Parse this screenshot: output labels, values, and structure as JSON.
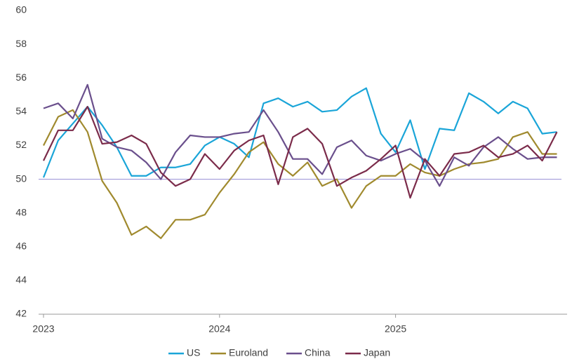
{
  "chart_data": {
    "type": "line",
    "categories": [
      "2023",
      null,
      null,
      null,
      null,
      null,
      null,
      null,
      null,
      null,
      null,
      null,
      "2024",
      null,
      null,
      null,
      null,
      null,
      null,
      null,
      null,
      null,
      null,
      null,
      "2025",
      null,
      null,
      null,
      null,
      null,
      null,
      null,
      null,
      null,
      null,
      null
    ],
    "series": [
      {
        "name": "US",
        "color": "#1aa5d8",
        "values": [
          50.1,
          52.3,
          53.3,
          54.3,
          53.2,
          51.9,
          50.2,
          50.2,
          50.7,
          50.7,
          50.9,
          52.0,
          52.5,
          52.1,
          51.3,
          54.5,
          54.8,
          54.3,
          54.6,
          54.0,
          54.1,
          54.9,
          55.4,
          52.7,
          51.6,
          53.5,
          50.6,
          53.0,
          52.9,
          55.1,
          54.6,
          53.9,
          54.6,
          54.2,
          52.7,
          52.8
        ]
      },
      {
        "name": "Euroland",
        "color": "#a08a2e",
        "values": [
          52.0,
          53.7,
          54.1,
          52.8,
          49.9,
          48.6,
          46.7,
          47.2,
          46.5,
          47.6,
          47.6,
          47.9,
          49.2,
          50.3,
          51.6,
          52.2,
          50.9,
          50.2,
          51.0,
          49.6,
          50.0,
          48.3,
          49.6,
          50.2,
          50.2,
          50.9,
          50.4,
          50.2,
          50.6,
          50.9,
          51.0,
          51.2,
          52.5,
          52.8,
          51.5,
          51.5
        ]
      },
      {
        "name": "China",
        "color": "#6a4f8c",
        "values": [
          54.2,
          54.5,
          53.6,
          55.6,
          52.4,
          51.9,
          51.7,
          51.0,
          50.0,
          51.6,
          52.6,
          52.5,
          52.5,
          52.7,
          52.8,
          54.1,
          52.8,
          51.2,
          51.2,
          50.3,
          51.9,
          52.3,
          51.4,
          51.1,
          51.5,
          51.8,
          51.1,
          49.6,
          51.3,
          50.8,
          51.9,
          52.5,
          51.8,
          51.2,
          51.3,
          51.3
        ]
      },
      {
        "name": "Japan",
        "color": "#7b2b4a",
        "values": [
          51.1,
          52.9,
          52.9,
          54.3,
          52.1,
          52.2,
          52.6,
          52.1,
          50.4,
          49.6,
          50.0,
          51.5,
          50.6,
          51.7,
          52.3,
          52.6,
          49.7,
          52.5,
          53.0,
          52.1,
          49.6,
          50.1,
          50.5,
          51.2,
          52.0,
          48.9,
          51.2,
          50.2,
          51.5,
          51.6,
          52.0,
          51.3,
          51.5,
          52.0,
          51.1,
          52.8
        ]
      }
    ],
    "ylim": [
      42,
      60
    ],
    "yticks": [
      42,
      44,
      46,
      48,
      50,
      52,
      54,
      56,
      58,
      60
    ],
    "hline": 50,
    "hline_color": "#9b93d6",
    "legend": "bottom"
  }
}
